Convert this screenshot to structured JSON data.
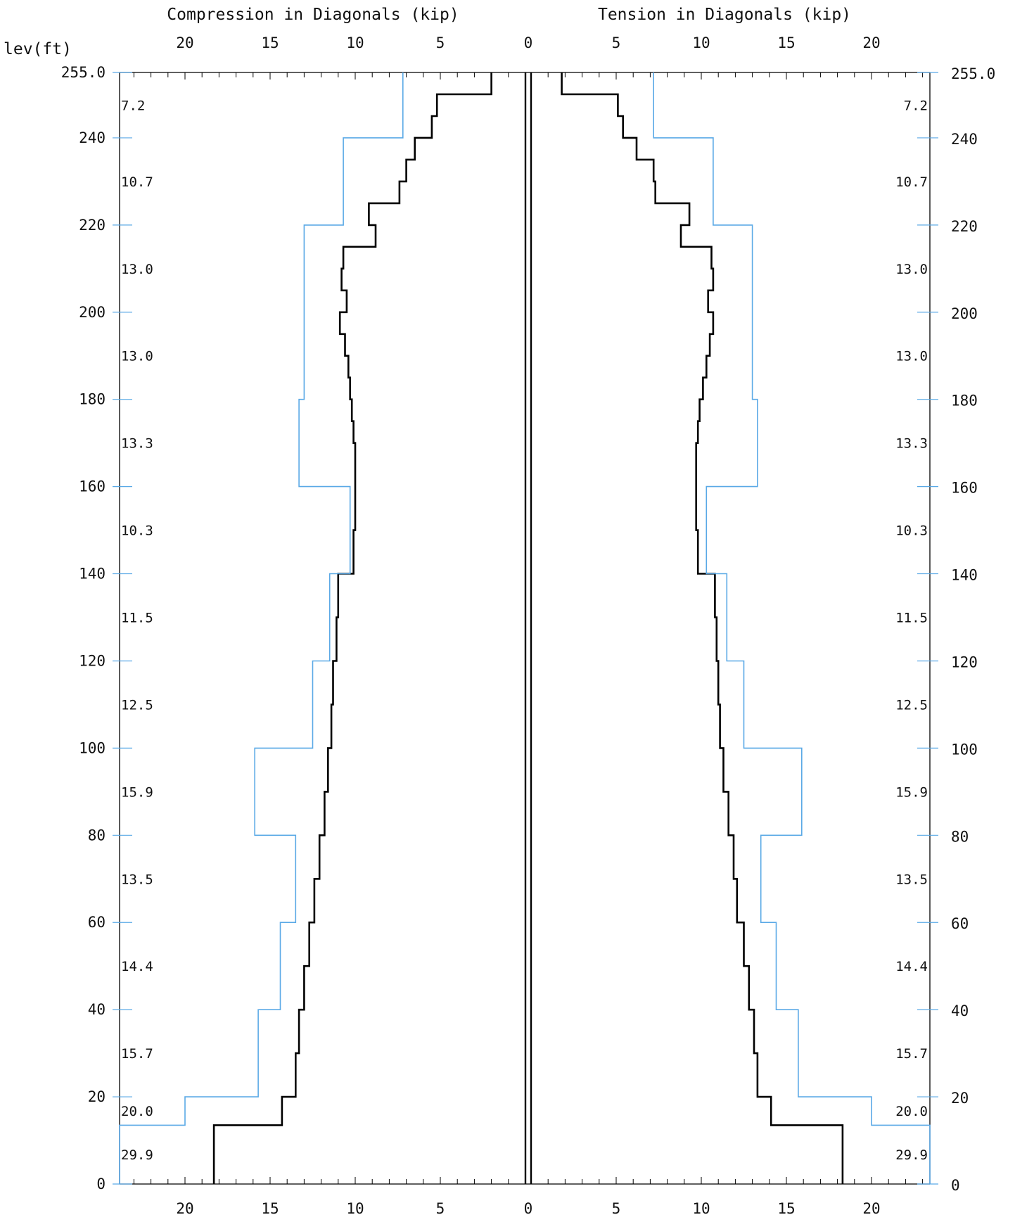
{
  "chart_data": {
    "type": "line",
    "elevation_label": "lev(ft)",
    "left_axis_title": "Compression in Diagonals (kip)",
    "right_axis_title": "Tension in Diagonals (kip)",
    "x_ticks": [
      0,
      5,
      10,
      15,
      20
    ],
    "x_range": [
      0,
      24
    ],
    "y_range": [
      0,
      255
    ],
    "y_ticks_left": [
      "0",
      "20",
      "40",
      "60",
      "80",
      "100",
      "120",
      "140",
      "160",
      "180",
      "200",
      "220",
      "240",
      "255.0"
    ],
    "y_ticks_right": [
      "0",
      "20",
      "40",
      "60",
      "80",
      "100",
      "120",
      "140",
      "160",
      "180",
      "200",
      "220",
      "240",
      "255.0"
    ],
    "panels": [
      {
        "top": 255,
        "bottom": 240,
        "label": "7.2"
      },
      {
        "top": 240,
        "bottom": 220,
        "label": "10.7"
      },
      {
        "top": 220,
        "bottom": 200,
        "label": "13.0"
      },
      {
        "top": 200,
        "bottom": 180,
        "label": "13.0"
      },
      {
        "top": 180,
        "bottom": 160,
        "label": "13.3"
      },
      {
        "top": 160,
        "bottom": 140,
        "label": "10.3"
      },
      {
        "top": 140,
        "bottom": 120,
        "label": "11.5"
      },
      {
        "top": 120,
        "bottom": 100,
        "label": "12.5"
      },
      {
        "top": 100,
        "bottom": 80,
        "label": "15.9"
      },
      {
        "top": 80,
        "bottom": 60,
        "label": "13.5"
      },
      {
        "top": 60,
        "bottom": 40,
        "label": "14.4"
      },
      {
        "top": 40,
        "bottom": 20,
        "label": "15.7"
      },
      {
        "top": 20,
        "bottom": 13.5,
        "label": "20.0"
      },
      {
        "top": 13.5,
        "bottom": 0,
        "label": "29.9"
      }
    ],
    "series": [
      {
        "color": "#000000",
        "side": "compression",
        "segments": [
          {
            "top": 255,
            "bottom": 250,
            "value": 2.0
          },
          {
            "top": 250,
            "bottom": 245,
            "value": 5.2
          },
          {
            "top": 245,
            "bottom": 240,
            "value": 5.5
          },
          {
            "top": 240,
            "bottom": 235,
            "value": 6.5
          },
          {
            "top": 235,
            "bottom": 230,
            "value": 7.0
          },
          {
            "top": 230,
            "bottom": 225,
            "value": 7.4
          },
          {
            "top": 225,
            "bottom": 220,
            "value": 9.2
          },
          {
            "top": 220,
            "bottom": 215,
            "value": 8.8
          },
          {
            "top": 215,
            "bottom": 210,
            "value": 10.7
          },
          {
            "top": 210,
            "bottom": 205,
            "value": 10.8
          },
          {
            "top": 205,
            "bottom": 200,
            "value": 10.5
          },
          {
            "top": 200,
            "bottom": 195,
            "value": 10.9
          },
          {
            "top": 195,
            "bottom": 190,
            "value": 10.6
          },
          {
            "top": 190,
            "bottom": 185,
            "value": 10.4
          },
          {
            "top": 185,
            "bottom": 180,
            "value": 10.3
          },
          {
            "top": 180,
            "bottom": 175,
            "value": 10.2
          },
          {
            "top": 175,
            "bottom": 170,
            "value": 10.1
          },
          {
            "top": 170,
            "bottom": 160,
            "value": 10.0
          },
          {
            "top": 160,
            "bottom": 150,
            "value": 10.0
          },
          {
            "top": 150,
            "bottom": 140,
            "value": 10.1
          },
          {
            "top": 140,
            "bottom": 130,
            "value": 11.0
          },
          {
            "top": 130,
            "bottom": 120,
            "value": 11.1
          },
          {
            "top": 120,
            "bottom": 110,
            "value": 11.3
          },
          {
            "top": 110,
            "bottom": 100,
            "value": 11.4
          },
          {
            "top": 100,
            "bottom": 90,
            "value": 11.6
          },
          {
            "top": 90,
            "bottom": 80,
            "value": 11.8
          },
          {
            "top": 80,
            "bottom": 70,
            "value": 12.1
          },
          {
            "top": 70,
            "bottom": 60,
            "value": 12.4
          },
          {
            "top": 60,
            "bottom": 50,
            "value": 12.7
          },
          {
            "top": 50,
            "bottom": 40,
            "value": 13.0
          },
          {
            "top": 40,
            "bottom": 30,
            "value": 13.3
          },
          {
            "top": 30,
            "bottom": 20,
            "value": 13.5
          },
          {
            "top": 20,
            "bottom": 13.5,
            "value": 14.3
          },
          {
            "top": 13.5,
            "bottom": 0,
            "value": 18.3
          }
        ]
      },
      {
        "color": "#5aa9e6",
        "side": "compression",
        "segments": [
          {
            "top": 255,
            "bottom": 240,
            "value": 7.2
          },
          {
            "top": 240,
            "bottom": 220,
            "value": 10.7
          },
          {
            "top": 220,
            "bottom": 180,
            "value": 13.0
          },
          {
            "top": 180,
            "bottom": 160,
            "value": 13.3
          },
          {
            "top": 160,
            "bottom": 140,
            "value": 10.3
          },
          {
            "top": 140,
            "bottom": 120,
            "value": 11.5
          },
          {
            "top": 120,
            "bottom": 100,
            "value": 12.5
          },
          {
            "top": 100,
            "bottom": 80,
            "value": 15.9
          },
          {
            "top": 80,
            "bottom": 60,
            "value": 13.5
          },
          {
            "top": 60,
            "bottom": 40,
            "value": 14.4
          },
          {
            "top": 40,
            "bottom": 20,
            "value": 15.7
          },
          {
            "top": 20,
            "bottom": 13.5,
            "value": 20.0
          },
          {
            "top": 13.5,
            "bottom": 0,
            "value": 29.9
          }
        ]
      },
      {
        "color": "#000000",
        "side": "tension",
        "segments": [
          {
            "top": 255,
            "bottom": 250,
            "value": 1.8
          },
          {
            "top": 250,
            "bottom": 245,
            "value": 5.1
          },
          {
            "top": 245,
            "bottom": 240,
            "value": 5.4
          },
          {
            "top": 240,
            "bottom": 235,
            "value": 6.2
          },
          {
            "top": 235,
            "bottom": 230,
            "value": 7.2
          },
          {
            "top": 230,
            "bottom": 225,
            "value": 7.3
          },
          {
            "top": 225,
            "bottom": 220,
            "value": 9.3
          },
          {
            "top": 220,
            "bottom": 215,
            "value": 8.8
          },
          {
            "top": 215,
            "bottom": 210,
            "value": 10.6
          },
          {
            "top": 210,
            "bottom": 205,
            "value": 10.7
          },
          {
            "top": 205,
            "bottom": 200,
            "value": 10.4
          },
          {
            "top": 200,
            "bottom": 195,
            "value": 10.7
          },
          {
            "top": 195,
            "bottom": 190,
            "value": 10.5
          },
          {
            "top": 190,
            "bottom": 185,
            "value": 10.3
          },
          {
            "top": 185,
            "bottom": 180,
            "value": 10.1
          },
          {
            "top": 180,
            "bottom": 175,
            "value": 9.9
          },
          {
            "top": 175,
            "bottom": 170,
            "value": 9.8
          },
          {
            "top": 170,
            "bottom": 160,
            "value": 9.7
          },
          {
            "top": 160,
            "bottom": 150,
            "value": 9.7
          },
          {
            "top": 150,
            "bottom": 140,
            "value": 9.8
          },
          {
            "top": 140,
            "bottom": 130,
            "value": 10.8
          },
          {
            "top": 130,
            "bottom": 120,
            "value": 10.9
          },
          {
            "top": 120,
            "bottom": 110,
            "value": 11.0
          },
          {
            "top": 110,
            "bottom": 100,
            "value": 11.1
          },
          {
            "top": 100,
            "bottom": 90,
            "value": 11.3
          },
          {
            "top": 90,
            "bottom": 80,
            "value": 11.6
          },
          {
            "top": 80,
            "bottom": 70,
            "value": 11.9
          },
          {
            "top": 70,
            "bottom": 60,
            "value": 12.1
          },
          {
            "top": 60,
            "bottom": 50,
            "value": 12.5
          },
          {
            "top": 50,
            "bottom": 40,
            "value": 12.8
          },
          {
            "top": 40,
            "bottom": 30,
            "value": 13.1
          },
          {
            "top": 30,
            "bottom": 20,
            "value": 13.3
          },
          {
            "top": 20,
            "bottom": 13.5,
            "value": 14.1
          },
          {
            "top": 13.5,
            "bottom": 0,
            "value": 18.3
          }
        ]
      },
      {
        "color": "#5aa9e6",
        "side": "tension",
        "segments": [
          {
            "top": 255,
            "bottom": 240,
            "value": 7.2
          },
          {
            "top": 240,
            "bottom": 220,
            "value": 10.7
          },
          {
            "top": 220,
            "bottom": 180,
            "value": 13.0
          },
          {
            "top": 180,
            "bottom": 160,
            "value": 13.3
          },
          {
            "top": 160,
            "bottom": 140,
            "value": 10.3
          },
          {
            "top": 140,
            "bottom": 120,
            "value": 11.5
          },
          {
            "top": 120,
            "bottom": 100,
            "value": 12.5
          },
          {
            "top": 100,
            "bottom": 80,
            "value": 15.9
          },
          {
            "top": 80,
            "bottom": 60,
            "value": 13.5
          },
          {
            "top": 60,
            "bottom": 40,
            "value": 14.4
          },
          {
            "top": 40,
            "bottom": 20,
            "value": 15.7
          },
          {
            "top": 20,
            "bottom": 13.5,
            "value": 20.0
          },
          {
            "top": 13.5,
            "bottom": 0,
            "value": 29.9
          }
        ]
      }
    ]
  }
}
